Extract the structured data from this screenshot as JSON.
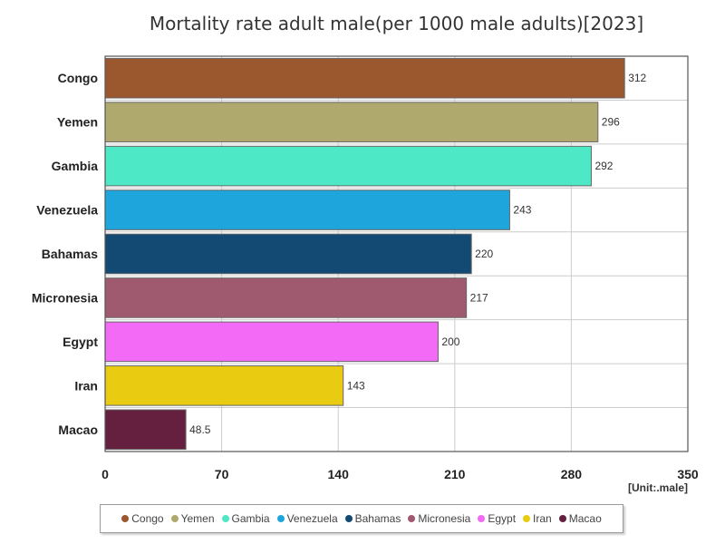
{
  "chart_data": {
    "type": "bar",
    "orientation": "horizontal",
    "title": "Mortality rate adult male(per 1000 male adults)[2023]",
    "unit_label": "[Unit:.male]",
    "categories": [
      "Congo",
      "Yemen",
      "Gambia",
      "Venezuela",
      "Bahamas",
      "Micronesia",
      "Egypt",
      "Iran",
      "Macao"
    ],
    "values": [
      312,
      296,
      292,
      243,
      220,
      217,
      200,
      143,
      48.5
    ],
    "value_labels": [
      "312",
      "296",
      "292",
      "243",
      "220",
      "217",
      "200",
      "143",
      "48.5"
    ],
    "colors": [
      "#9b582e",
      "#b0a96e",
      "#4de8c6",
      "#1ea6dc",
      "#124a74",
      "#a05a70",
      "#f26af5",
      "#e9cb12",
      "#66203f"
    ],
    "xlim": [
      0,
      350
    ],
    "xticks": [
      0,
      70,
      140,
      210,
      280,
      350
    ],
    "grid": true,
    "legend_position": "bottom"
  }
}
